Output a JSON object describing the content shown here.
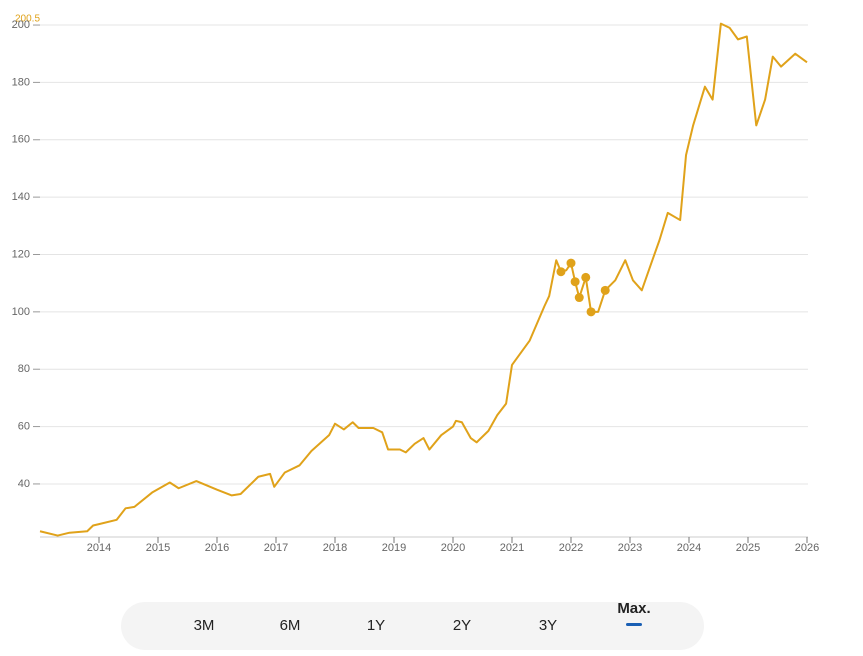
{
  "chart_data": {
    "type": "line",
    "annotation": "200.5",
    "x": [
      2013.0,
      2013.3,
      2013.5,
      2013.8,
      2013.9,
      2014.0,
      2014.3,
      2014.45,
      2014.6,
      2014.9,
      2015.2,
      2015.35,
      2015.65,
      2016.0,
      2016.25,
      2016.4,
      2016.7,
      2016.9,
      2016.97,
      2017.15,
      2017.4,
      2017.6,
      2017.9,
      2018.0,
      2018.15,
      2018.3,
      2018.4,
      2018.65,
      2018.8,
      2018.9,
      2019.1,
      2019.2,
      2019.35,
      2019.5,
      2019.6,
      2019.8,
      2020.0,
      2020.05,
      2020.15,
      2020.3,
      2020.4,
      2020.6,
      2020.75,
      2020.9,
      2021.0,
      2021.3,
      2021.55,
      2021.63,
      2021.75,
      2021.83,
      2021.92,
      2022.0,
      2022.07,
      2022.14,
      2022.25,
      2022.34,
      2022.46,
      2022.58,
      2022.75,
      2022.92,
      2023.05,
      2023.2,
      2023.37,
      2023.5,
      2023.64,
      2023.85,
      2023.95,
      2024.07,
      2024.27,
      2024.4,
      2024.54,
      2024.69,
      2024.83,
      2024.98,
      2025.14,
      2025.29,
      2025.42,
      2025.56,
      2025.8,
      2026.0
    ],
    "series": [
      {
        "color": "#e0a21a",
        "values": [
          23.5,
          22,
          23,
          23.5,
          25.5,
          26,
          27.5,
          31.5,
          32,
          37,
          40.5,
          38.5,
          41,
          38,
          36,
          36.5,
          42.5,
          43.5,
          39,
          44,
          46.5,
          51.5,
          57,
          61,
          59,
          61.5,
          59.5,
          59.5,
          58,
          52,
          52,
          51,
          54,
          56,
          52,
          57,
          60,
          62,
          61.5,
          56,
          54.5,
          58.5,
          64,
          68,
          81.5,
          90,
          102,
          105.5,
          118,
          114,
          114.5,
          117,
          110.5,
          105,
          112,
          100,
          100,
          107.5,
          111,
          118,
          111,
          107.5,
          117.5,
          125,
          134.5,
          132,
          154.7,
          165,
          178.5,
          174,
          200.5,
          199,
          195,
          196,
          165,
          174,
          189,
          185.5,
          190,
          187
        ]
      }
    ],
    "markers": {
      "x": [
        2021.83,
        2022.0,
        2022.07,
        2022.14,
        2022.25,
        2022.34,
        2022.58
      ],
      "values": [
        114,
        117,
        110.5,
        105,
        112,
        100,
        107.5
      ]
    },
    "xlim": [
      2013,
      2026
    ],
    "xticks": [
      2014,
      2015,
      2016,
      2017,
      2018,
      2019,
      2020,
      2021,
      2022,
      2023,
      2024,
      2025,
      2026
    ],
    "ylim": [
      21.5,
      200.5
    ],
    "yticks": [
      40,
      60,
      80,
      100,
      120,
      140,
      160,
      180,
      200
    ],
    "grid": true
  },
  "range_buttons": {
    "labels": [
      "3M",
      "6M",
      "1Y",
      "2Y",
      "3Y",
      "Max."
    ],
    "selected": 5
  }
}
